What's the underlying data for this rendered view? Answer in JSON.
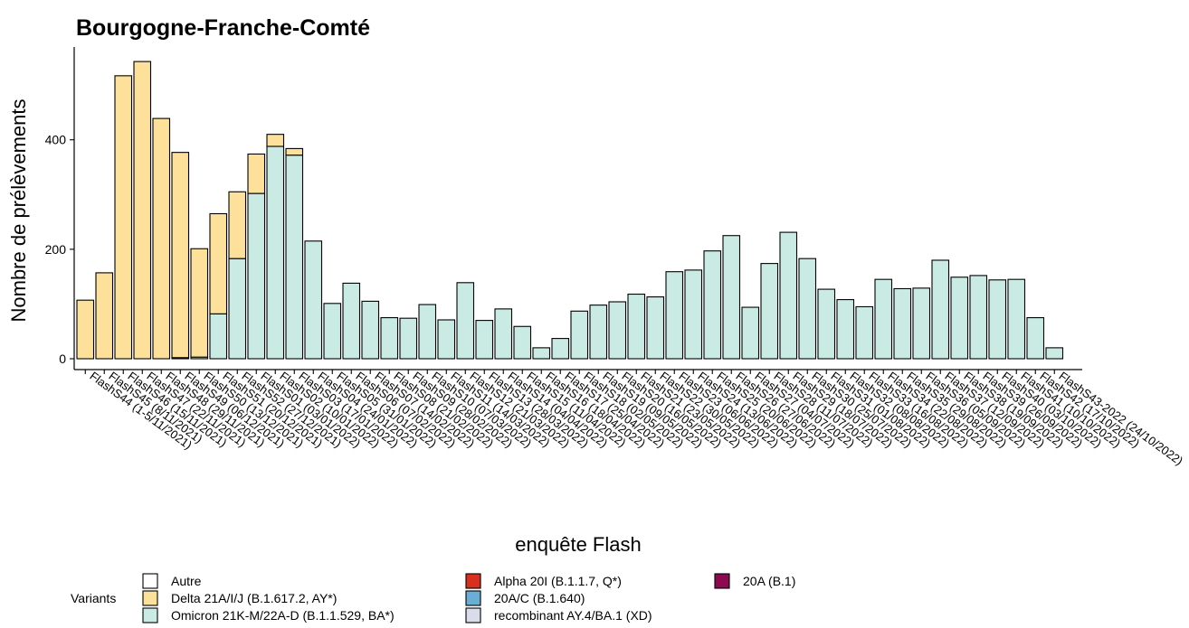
{
  "chart_data": {
    "type": "bar",
    "stacked": true,
    "title": "Bourgogne-Franche-Comté",
    "xlabel": "enquête Flash",
    "ylabel": "Nombre de prélèvements",
    "ylim": [
      0,
      570
    ],
    "yticks": [
      0,
      200,
      400
    ],
    "grid": false,
    "legend_position": "bottom",
    "legend_title": "Variants",
    "categories": [
      "FlashS44 (1-5/11/2021)",
      "FlashS45 (8/11/2021)",
      "FlashS46 (15/11/2021)",
      "FlashS47 (22/11/2021)",
      "FlashS48 (29/11/2021)",
      "FlashS49 (06/12/2021)",
      "FlashS50 (13/12/2021)",
      "FlashS51 (20/12/2021)",
      "FlashS52 (27/12/2021)",
      "FlashS01 (03/01/2022)",
      "FlashS02 (10/01/2022)",
      "FlashS03 (17/01/2022)",
      "FlashS04 (24/01/2022)",
      "FlashS05 (31/01/2022)",
      "FlashS06 (07/02/2022)",
      "FlashS07 (14/02/2022)",
      "FlashS08 (21/02/2022)",
      "FlashS09 (28/02/2022)",
      "FlashS10 (07/03/2022)",
      "FlashS11 (14/03/2022)",
      "FlashS12 (21/03/2022)",
      "FlashS13 (28/03/2022)",
      "FlashS14 (04/04/2022)",
      "FlashS15 (11/04/2022)",
      "FlashS16 (18/04/2022)",
      "FlashS17 (25/04/2022)",
      "FlashS18 (02/05/2022)",
      "FlashS19 (09/05/2022)",
      "FlashS20 (16/05/2022)",
      "FlashS21 (23/05/2022)",
      "FlashS22 (30/05/2022)",
      "FlashS23 (06/06/2022)",
      "FlashS24 (13/06/2022)",
      "FlashS25 (20/06/2022)",
      "FlashS26 (27/06/2022)",
      "FlashS27 (04/07/2022)",
      "FlashS28 (11/07/2022)",
      "FlashS29 (18/07/2022)",
      "FlashS30 (25/07/2022)",
      "FlashS31 (01/08/2022)",
      "FlashS32 (08/08/2022)",
      "FlashS33 (16/08/2022)",
      "FlashS34 (22/08/2022)",
      "FlashS35 (29/08/2022)",
      "FlashS36 (05/09/2022)",
      "FlashS37 (12/09/2022)",
      "FlashS38 (19/09/2022)",
      "FlashS39 (26/09/2022)",
      "FlashS40 (03/10/2022)",
      "FlashS41 (10/10/2022)",
      "FlashS42 (17/10/2022)",
      "FlashS43-2022 (24/10/2022)"
    ],
    "series": [
      {
        "name": "Omicron 21K-M/22A-D (B.1.1.529, BA*)",
        "color": "#c9ebe3",
        "values": [
          0,
          0,
          0,
          0,
          0,
          2,
          3,
          82,
          183,
          302,
          388,
          372,
          215,
          101,
          138,
          105,
          75,
          74,
          99,
          71,
          139,
          70,
          91,
          59,
          20,
          37,
          87,
          98,
          104,
          118,
          113,
          159,
          162,
          197,
          225,
          94,
          174,
          231,
          183,
          127,
          108,
          95,
          145,
          128,
          129,
          180,
          149,
          152,
          144,
          145,
          75,
          20
        ]
      },
      {
        "name": "Delta 21A/I/J (B.1.617.2, AY*)",
        "color": "#fde09a",
        "values": [
          107,
          157,
          517,
          543,
          439,
          375,
          198,
          183,
          122,
          72,
          22,
          12,
          0,
          0,
          0,
          0,
          0,
          0,
          0,
          0,
          0,
          0,
          0,
          0,
          0,
          0,
          0,
          0,
          0,
          0,
          0,
          0,
          0,
          0,
          0,
          0,
          0,
          0,
          0,
          0,
          0,
          0,
          0,
          0,
          0,
          0,
          0,
          0,
          0,
          0,
          0,
          0
        ]
      }
    ],
    "legend": [
      {
        "label": "Autre",
        "color": "#ffffff"
      },
      {
        "label": "Delta 21A/I/J (B.1.617.2, AY*)",
        "color": "#fde09a"
      },
      {
        "label": "Omicron 21K-M/22A-D (B.1.1.529, BA*)",
        "color": "#c9ebe3"
      },
      {
        "label": "Alpha 20I (B.1.1.7, Q*)",
        "color": "#d7301f"
      },
      {
        "label": "20A/C (B.1.640)",
        "color": "#6aaed6"
      },
      {
        "label": "recombinant AY.4/BA.1 (XD)",
        "color": "#d9dcea"
      },
      {
        "label": "20A (B.1)",
        "color": "#8b0a50"
      }
    ]
  }
}
